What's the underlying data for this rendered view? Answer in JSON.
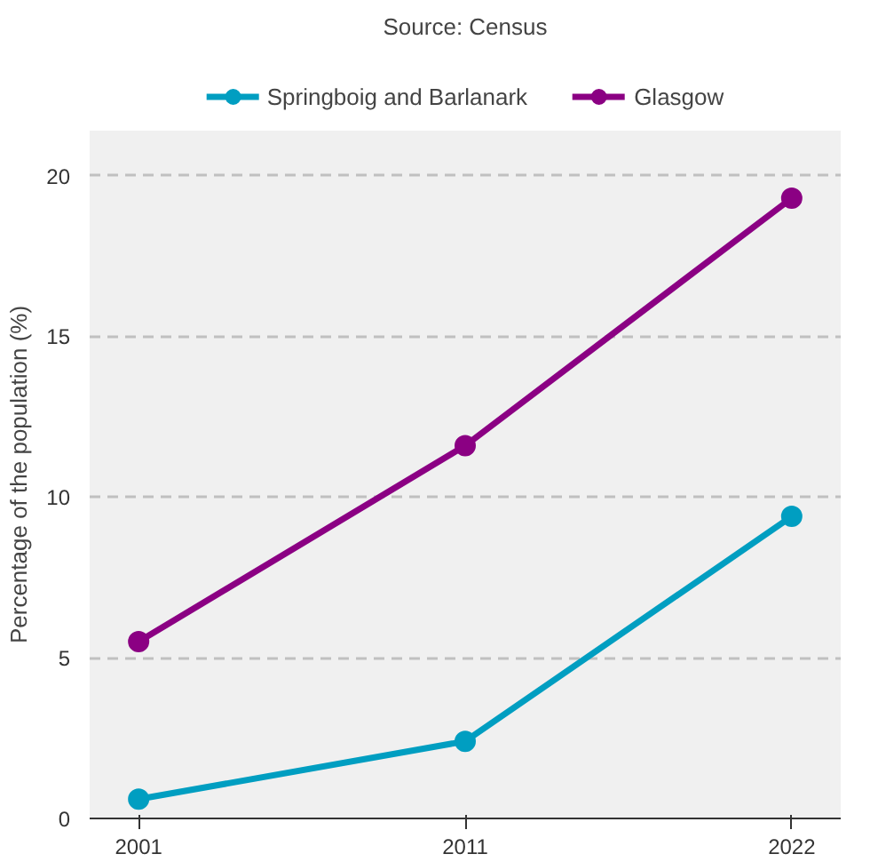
{
  "chart_data": {
    "type": "line",
    "title": "Source: Census",
    "ylabel": "Percentage of the population (%)",
    "categories": [
      "2001",
      "2011",
      "2022"
    ],
    "series": [
      {
        "name": "Springboig and Barlanark",
        "color": "#009ec1",
        "values": [
          0.6,
          2.4,
          9.4
        ]
      },
      {
        "name": "Glasgow",
        "color": "#8b0083",
        "values": [
          5.5,
          11.6,
          19.3
        ]
      }
    ],
    "ylim": [
      0,
      21.4
    ],
    "yticks": [
      0,
      5,
      10,
      15,
      20
    ],
    "grid": "y",
    "legend": "top",
    "marker": "circle",
    "line_style": "solid"
  }
}
